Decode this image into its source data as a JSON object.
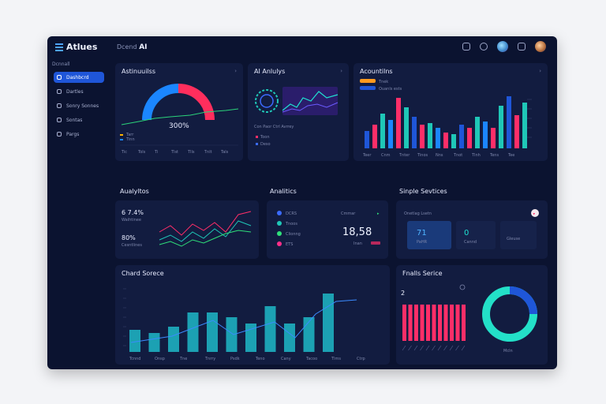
{
  "app": {
    "logo": "Atlues",
    "brand_prefix": "Dcend",
    "brand_strong": "AI"
  },
  "sidebar": {
    "heading": "Dcnnall",
    "items": [
      {
        "label": "Dashbcrd",
        "active": true
      },
      {
        "label": "Dartles"
      },
      {
        "label": "Sonry Sonnes"
      },
      {
        "label": "Sontas"
      },
      {
        "label": "Pargs"
      }
    ]
  },
  "cards": {
    "analytics_top": {
      "title": "Astinuuilss",
      "gauge_value": "300%",
      "x_labels": [
        "Tic",
        "Tols",
        "Ti",
        "Tlst",
        "Tlls",
        "Tnlt",
        "Tals"
      ],
      "legend": [
        "Tarr",
        "Tinn"
      ]
    },
    "ai_analytics": {
      "title": "AI Anlulys",
      "subtitle": "Con Paor Ctrl Avrrey",
      "legend": [
        "Toon",
        "Deso"
      ]
    },
    "accounts": {
      "title": "Acountilns",
      "legend": [
        "Tnek",
        "Ouanls ests"
      ],
      "x_labels": [
        "Teer",
        "Cnm",
        "Tnter",
        "Tinos",
        "Nns",
        "Tnot",
        "Tlnh",
        "Tens",
        "Tee"
      ]
    },
    "analytics_mid": {
      "title": "Aualyltos",
      "stat1": "6 7.4%",
      "stat1_label": "Waihtinee",
      "stat2": "80%",
      "stat2_label": "Cesntlines"
    },
    "analitics": {
      "title": "Analitics",
      "items": [
        {
          "label": "DCRS",
          "color": "#3b6bff"
        },
        {
          "label": "Tnoos",
          "color": "#1fc7b7"
        },
        {
          "label": "Clionng",
          "color": "#2fe07a"
        },
        {
          "label": "ETS",
          "color": "#ff2e8a"
        }
      ],
      "right_label": "Cmmar",
      "big_value": "18,58",
      "small_label": "Inan"
    },
    "simple_services": {
      "title": "Sinple Sevtices",
      "sub": "Onetlag Lsetn",
      "v1": "71",
      "v1_label": "PaHR",
      "v2": "0",
      "v2_label": "Cannd",
      "v3_label": "Gleuse"
    },
    "chard_source": {
      "title": "Chard Sorece",
      "x_labels": [
        "Tcnnd",
        "Onsp",
        "Tne",
        "Tnrry",
        "Psdk",
        "Teno",
        "Cany",
        "Tacoo",
        "Tlms",
        "Ctrp"
      ]
    },
    "fnalls_service": {
      "title": "Fnalls Serice",
      "value": "2",
      "donut_label": "Mcln"
    }
  },
  "colors": {
    "accent": "#1f56d8",
    "pink": "#ff2e68",
    "teal": "#1fc7b7",
    "cyan": "#23e0d0"
  }
}
